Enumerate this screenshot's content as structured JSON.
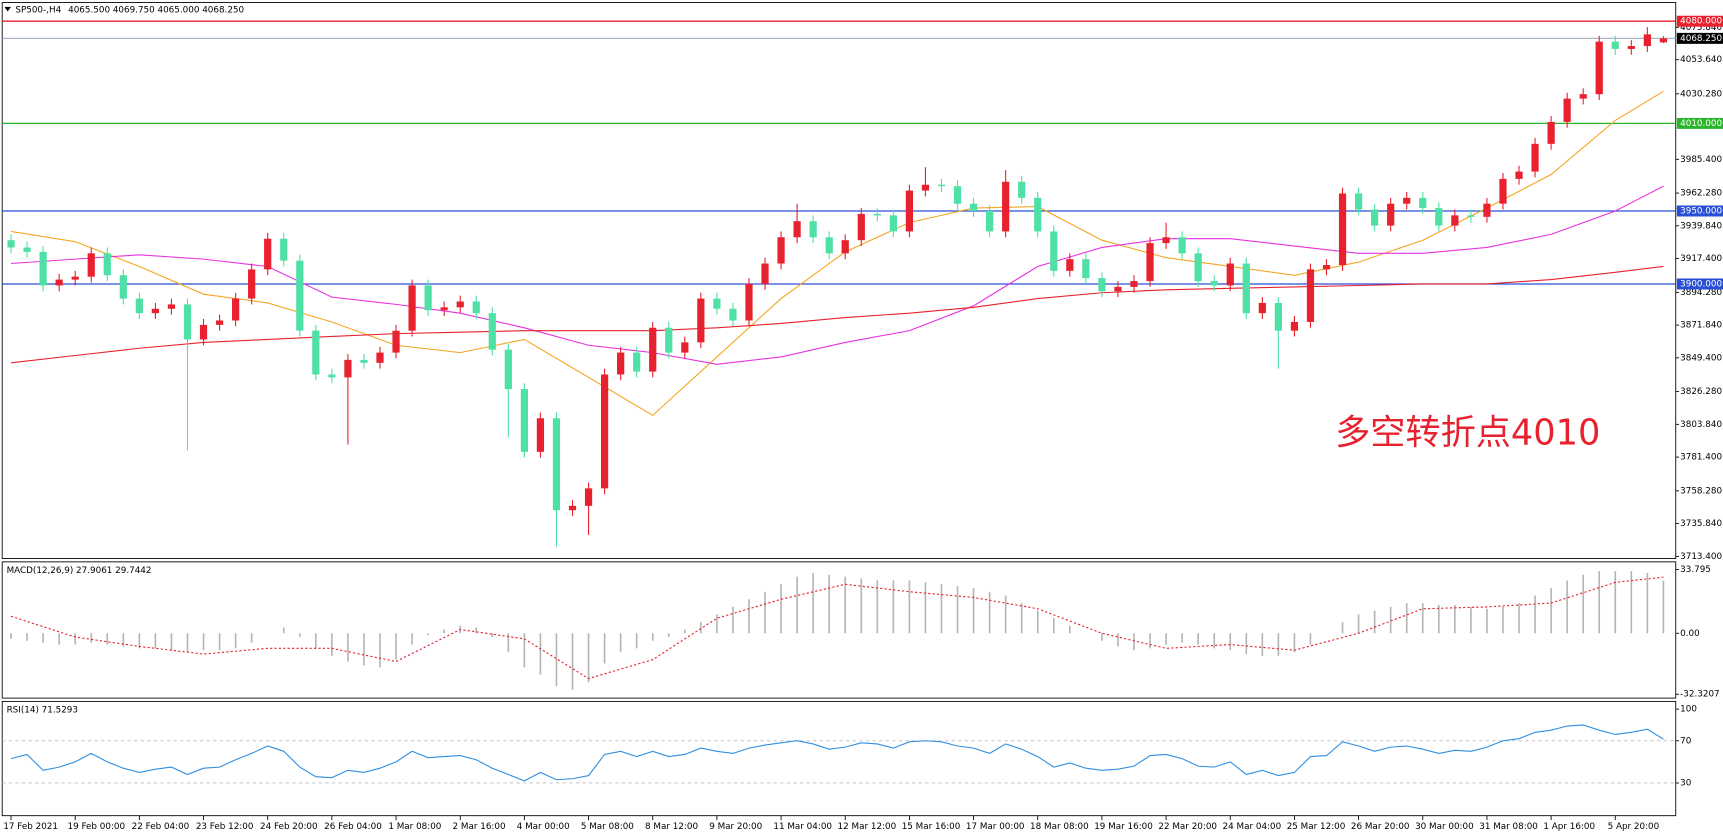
{
  "chart_data": [
    {
      "type": "candlestick",
      "title": "SP500-,H4",
      "subtitle": "4065.500 4069.750 4065.000 4068.250",
      "annotation": "多空转折点4010",
      "up_color": "#e8212e",
      "down_color": "#4fe0a6",
      "open": [
        3930,
        3925,
        3922,
        3899,
        3903,
        3905,
        3921,
        3906,
        3890,
        3880,
        3883,
        3886,
        3862,
        3872,
        3875,
        3890,
        3910,
        3931,
        3916,
        3868,
        3838,
        3836,
        3848,
        3846,
        3853,
        3868,
        3899,
        3882,
        3884,
        3888,
        3880,
        3855,
        3828,
        3785,
        3808,
        3745,
        3748,
        3760,
        3838,
        3853,
        3840,
        3870,
        3853,
        3860,
        3890,
        3883,
        3875,
        3900,
        3914,
        3932,
        3943,
        3932,
        3921,
        3930,
        3948,
        3947,
        3936,
        3964,
        3968,
        3967,
        3955,
        3950,
        3936,
        3970,
        3959,
        3936,
        3909,
        3917,
        3904,
        3895,
        3898,
        3902,
        3928,
        3932,
        3921,
        3902,
        3899,
        3914,
        3880,
        3887,
        3868,
        3874,
        3910,
        3913,
        3962,
        3951,
        3940,
        3955,
        3959,
        3952,
        3940,
        3947,
        3946,
        3955,
        3972,
        3977,
        3996,
        4011,
        4027,
        4030,
        4066,
        4061,
        4063,
        4065.5
      ],
      "high": [
        3934,
        3929,
        3926,
        3907,
        3909,
        3925,
        3925,
        3910,
        3894,
        3887,
        3890,
        3890,
        3876,
        3879,
        3894,
        3914,
        3935,
        3935,
        3920,
        3872,
        3842,
        3852,
        3852,
        3857,
        3872,
        3903,
        3903,
        3888,
        3892,
        3892,
        3884,
        3859,
        3832,
        3812,
        3812,
        3752,
        3764,
        3842,
        3857,
        3857,
        3874,
        3874,
        3864,
        3894,
        3894,
        3887,
        3904,
        3918,
        3936,
        3955,
        3947,
        3936,
        3934,
        3952,
        3952,
        3951,
        3968,
        3980,
        3972,
        3971,
        3959,
        3954,
        3978,
        3974,
        3963,
        3940,
        3921,
        3921,
        3908,
        3902,
        3906,
        3932,
        3942,
        3936,
        3925,
        3906,
        3918,
        3918,
        3891,
        3891,
        3878,
        3914,
        3917,
        3966,
        3966,
        3955,
        3959,
        3963,
        3963,
        3956,
        3951,
        3951,
        3959,
        3976,
        3981,
        4000,
        4015,
        4031,
        4034,
        4070,
        4070,
        4067,
        4076,
        4069.75
      ],
      "low": [
        3921,
        3918,
        3895,
        3895,
        3899,
        3901,
        3902,
        3886,
        3876,
        3876,
        3879,
        3786,
        3858,
        3868,
        3871,
        3886,
        3906,
        3912,
        3864,
        3834,
        3832,
        3790,
        3842,
        3842,
        3849,
        3864,
        3878,
        3878,
        3880,
        3876,
        3851,
        3795,
        3781,
        3781,
        3720,
        3741,
        3728,
        3756,
        3834,
        3836,
        3836,
        3849,
        3849,
        3856,
        3879,
        3871,
        3871,
        3896,
        3910,
        3928,
        3928,
        3917,
        3917,
        3926,
        3943,
        3932,
        3932,
        3960,
        3963,
        3951,
        3946,
        3932,
        3932,
        3955,
        3932,
        3905,
        3905,
        3900,
        3891,
        3891,
        3894,
        3898,
        3924,
        3917,
        3898,
        3895,
        3895,
        3876,
        3876,
        3842,
        3864,
        3870,
        3906,
        3909,
        3947,
        3936,
        3936,
        3951,
        3948,
        3936,
        3936,
        3942,
        3942,
        3951,
        3968,
        3973,
        3992,
        4007,
        4023,
        4026,
        4057,
        4057,
        4059,
        4065
      ],
      "close": [
        3925,
        3922,
        3899,
        3903,
        3905,
        3921,
        3906,
        3890,
        3880,
        3883,
        3886,
        3862,
        3872,
        3875,
        3890,
        3910,
        3931,
        3916,
        3868,
        3838,
        3836,
        3848,
        3846,
        3853,
        3868,
        3899,
        3882,
        3884,
        3888,
        3880,
        3855,
        3828,
        3785,
        3808,
        3745,
        3748,
        3760,
        3838,
        3853,
        3840,
        3870,
        3853,
        3860,
        3890,
        3883,
        3875,
        3900,
        3914,
        3932,
        3943,
        3932,
        3921,
        3930,
        3948,
        3947,
        3936,
        3964,
        3968,
        3967,
        3955,
        3950,
        3936,
        3970,
        3959,
        3936,
        3909,
        3917,
        3904,
        3895,
        3898,
        3902,
        3928,
        3932,
        3921,
        3902,
        3899,
        3914,
        3880,
        3887,
        3868,
        3874,
        3910,
        3913,
        3962,
        3951,
        3940,
        3955,
        3959,
        3952,
        3940,
        3947,
        3946,
        3955,
        3972,
        3977,
        3996,
        4011,
        4027,
        4030,
        4066,
        4061,
        4063,
        4071,
        4068.25
      ],
      "series": [
        {
          "color": "#f5a623",
          "x": [
            0,
            4,
            8,
            12,
            16,
            20,
            24,
            28,
            32,
            36,
            40,
            44,
            48,
            52,
            56,
            60,
            64,
            68,
            72,
            76,
            80,
            84,
            88,
            92,
            96,
            100,
            103
          ],
          "values": [
            3936,
            3929,
            3912,
            3893,
            3887,
            3874,
            3858,
            3853,
            3862,
            3836,
            3810,
            3850,
            3890,
            3922,
            3942,
            3952,
            3953,
            3930,
            3918,
            3912,
            3906,
            3915,
            3930,
            3952,
            3975,
            4012,
            4032
          ]
        },
        {
          "color": "#e832e0",
          "x": [
            0,
            4,
            8,
            12,
            16,
            20,
            24,
            28,
            32,
            36,
            40,
            44,
            48,
            52,
            56,
            60,
            64,
            68,
            72,
            76,
            80,
            84,
            88,
            92,
            96,
            100,
            103
          ],
          "values": [
            3914,
            3917,
            3920,
            3917,
            3912,
            3891,
            3886,
            3880,
            3870,
            3858,
            3853,
            3845,
            3850,
            3860,
            3868,
            3885,
            3912,
            3925,
            3931,
            3931,
            3926,
            3921,
            3921,
            3925,
            3934,
            3950,
            3967
          ]
        },
        {
          "color": "#e8212e",
          "x": [
            0,
            4,
            8,
            12,
            16,
            20,
            24,
            28,
            32,
            36,
            40,
            44,
            48,
            52,
            56,
            60,
            64,
            68,
            72,
            76,
            80,
            84,
            88,
            92,
            96,
            100,
            103
          ],
          "values": [
            3846,
            3851,
            3856,
            3860,
            3862,
            3864,
            3866,
            3867,
            3868,
            3868,
            3868,
            3870,
            3873,
            3877,
            3880,
            3884,
            3890,
            3894,
            3896,
            3897,
            3898,
            3899,
            3900,
            3900,
            3903,
            3908,
            3912
          ]
        }
      ],
      "hlines": [
        {
          "value": 4080,
          "label": "4080.000",
          "color": "#e8212e",
          "label_fill": "#e8212e"
        },
        {
          "value": 4068.25,
          "label": "4068.250",
          "color": "#a9b4c2",
          "label_fill": "#000000"
        },
        {
          "value": 4010,
          "label": "4010.000",
          "color": "#2bb52b",
          "label_fill": "#2bb52b"
        },
        {
          "value": 3950,
          "label": "3950.000",
          "color": "#2a4fd6",
          "label_fill": "#2a4fd6"
        },
        {
          "value": 3900,
          "label": "3900.000",
          "color": "#2a4fd6",
          "label_fill": "#2a4fd6"
        }
      ],
      "xlim": [
        -0.55,
        103.77
      ],
      "ylim": [
        3711.9,
        4092.8
      ],
      "yticks": [
        {
          "value": 4075.84,
          "label": "4075.840"
        },
        {
          "value": 4053.64,
          "label": "4053.640"
        },
        {
          "value": 4030.28,
          "label": "4030.280"
        },
        {
          "value": 3985.4,
          "label": "3985.400"
        },
        {
          "value": 3962.28,
          "label": "3962.280"
        },
        {
          "value": 3939.84,
          "label": "3939.840"
        },
        {
          "value": 3917.4,
          "label": "3917.400"
        },
        {
          "value": 3894.28,
          "label": "3894.280"
        },
        {
          "value": 3871.84,
          "label": "3871.840"
        },
        {
          "value": 3849.4,
          "label": "3849.400"
        },
        {
          "value": 3826.28,
          "label": "3826.280"
        },
        {
          "value": 3803.84,
          "label": "3803.840"
        },
        {
          "value": 3781.4,
          "label": "3781.400"
        },
        {
          "value": 3758.28,
          "label": "3758.280"
        },
        {
          "value": 3735.84,
          "label": "3735.840"
        },
        {
          "value": 3713.4,
          "label": "3713.400"
        }
      ],
      "xticks": [
        {
          "value": 0,
          "label": "17 Feb 2021"
        },
        {
          "value": 4,
          "label": "19 Feb 00:00"
        },
        {
          "value": 8,
          "label": "22 Feb 04:00"
        },
        {
          "value": 12,
          "label": "23 Feb 12:00"
        },
        {
          "value": 16,
          "label": "24 Feb 20:00"
        },
        {
          "value": 20,
          "label": "26 Feb 04:00"
        },
        {
          "value": 24,
          "label": "1 Mar 08:00"
        },
        {
          "value": 28,
          "label": "2 Mar 16:00"
        },
        {
          "value": 32,
          "label": "4 Mar 00:00"
        },
        {
          "value": 36,
          "label": "5 Mar 08:00"
        },
        {
          "value": 40,
          "label": "8 Mar 12:00"
        },
        {
          "value": 44,
          "label": "9 Mar 20:00"
        },
        {
          "value": 48,
          "label": "11 Mar 04:00"
        },
        {
          "value": 52,
          "label": "12 Mar 12:00"
        },
        {
          "value": 56,
          "label": "15 Mar 16:00"
        },
        {
          "value": 60,
          "label": "17 Mar 00:00"
        },
        {
          "value": 64,
          "label": "18 Mar 08:00"
        },
        {
          "value": 68,
          "label": "19 Mar 16:00"
        },
        {
          "value": 72,
          "label": "22 Mar 20:00"
        },
        {
          "value": 76,
          "label": "24 Mar 04:00"
        },
        {
          "value": 80,
          "label": "25 Mar 12:00"
        },
        {
          "value": 84,
          "label": "26 Mar 20:00"
        },
        {
          "value": 88,
          "label": "30 Mar 00:00"
        },
        {
          "value": 92,
          "label": "31 Mar 08:00"
        },
        {
          "value": 96,
          "label": "1 Apr 16:00"
        },
        {
          "value": 100,
          "label": "5 Apr 20:00"
        }
      ]
    },
    {
      "type": "macd",
      "title": "MACD(12,26,9) 27.9061 29.7442",
      "color": "#b5b5b5",
      "values": [
        -3,
        -4,
        -5,
        -6,
        -6,
        -5,
        -6,
        -7,
        -8,
        -8,
        -9,
        -10,
        -9,
        -9,
        -8,
        -5,
        0,
        3,
        -2,
        -8,
        -12,
        -15,
        -17,
        -18,
        -14,
        -6,
        -1,
        2,
        4,
        3,
        -2,
        -10,
        -18,
        -22,
        -28,
        -30,
        -26,
        -16,
        -10,
        -8,
        -4,
        -2,
        2,
        6,
        10,
        14,
        18,
        22,
        26,
        30,
        32,
        31,
        30,
        29,
        28,
        28,
        28,
        27,
        26,
        25,
        24,
        22,
        20,
        16,
        12,
        8,
        4,
        0,
        -4,
        -7,
        -9,
        -8,
        -6,
        -5,
        -6,
        -8,
        -9,
        -11,
        -12,
        -12,
        -10,
        -6,
        0,
        6,
        10,
        12,
        14,
        16,
        16,
        15,
        15,
        14,
        13,
        14,
        16,
        20,
        24,
        28,
        31,
        33,
        33,
        33,
        32,
        27.9061
      ],
      "signal": {
        "color": "#e8212e",
        "x": [
          0,
          4,
          8,
          12,
          16,
          20,
          24,
          28,
          32,
          36,
          40,
          44,
          48,
          52,
          56,
          60,
          64,
          68,
          72,
          76,
          80,
          84,
          88,
          92,
          96,
          100,
          103
        ],
        "values": [
          9,
          -2,
          -7,
          -11,
          -8,
          -8,
          -15,
          2,
          -3,
          -24,
          -14,
          8,
          18,
          26,
          22,
          19,
          13,
          0,
          -8,
          -6,
          -9,
          0,
          13,
          14,
          16,
          27,
          29.7442
        ]
      },
      "ylim": [
        -34.38,
        37.87
      ],
      "yticks": [
        33.795,
        {
          "value": 0,
          "label": "0.00"
        },
        -32.3207
      ]
    },
    {
      "type": "line",
      "title": "RSI(14) 71.5293",
      "color": "#2f8fe0",
      "values": [
        53,
        57,
        42,
        45,
        50,
        58,
        50,
        44,
        40,
        43,
        45,
        38,
        44,
        45,
        52,
        58,
        65,
        60,
        45,
        36,
        35,
        42,
        40,
        44,
        50,
        60,
        54,
        55,
        56,
        52,
        44,
        38,
        32,
        40,
        33,
        34,
        37,
        57,
        60,
        55,
        60,
        55,
        57,
        63,
        60,
        58,
        63,
        66,
        68,
        70,
        67,
        62,
        64,
        68,
        67,
        63,
        69,
        70,
        69,
        65,
        63,
        58,
        67,
        62,
        55,
        45,
        49,
        44,
        42,
        43,
        46,
        56,
        57,
        53,
        46,
        45,
        50,
        38,
        42,
        37,
        40,
        55,
        56,
        69,
        65,
        60,
        64,
        65,
        62,
        58,
        61,
        60,
        64,
        70,
        72,
        78,
        80,
        84,
        85,
        80,
        76,
        78,
        81,
        71.5293
      ],
      "ylim": [
        -1,
        107.3
      ],
      "yticks": [
        100,
        70,
        30
      ],
      "levels": [
        70,
        30
      ]
    }
  ]
}
